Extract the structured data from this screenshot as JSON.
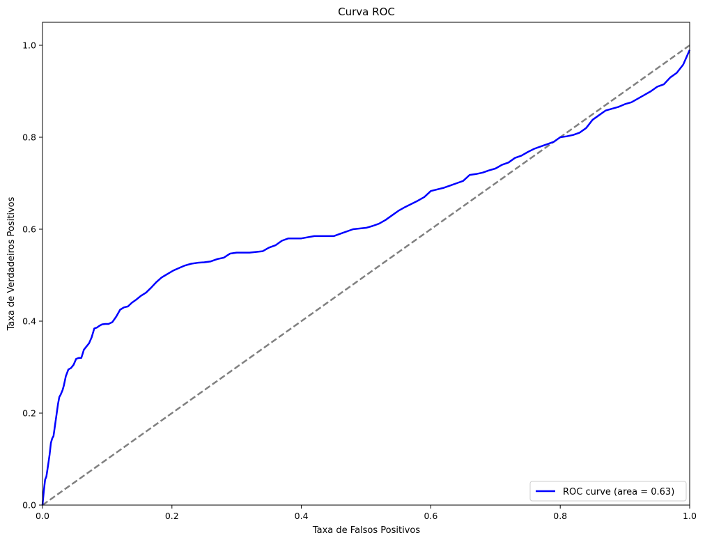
{
  "chart_data": {
    "type": "line",
    "title": "Curva ROC",
    "xlabel": "Taxa de Falsos Positivos",
    "ylabel": "Taxa de Verdadeiros Positivos",
    "xlim": [
      0.0,
      1.0
    ],
    "ylim": [
      0.0,
      1.05
    ],
    "x_ticks": [
      "0.0",
      "0.2",
      "0.4",
      "0.6",
      "0.8",
      "1.0"
    ],
    "y_ticks": [
      "0.0",
      "0.2",
      "0.4",
      "0.6",
      "0.8",
      "1.0"
    ],
    "grid": false,
    "legend_position": "lower-right",
    "series": [
      {
        "name": "ROC curve (area = 0.63)",
        "color": "#0000ff",
        "style": "solid",
        "x": [
          0.0,
          0.002,
          0.004,
          0.006,
          0.009,
          0.011,
          0.013,
          0.015,
          0.017,
          0.02,
          0.022,
          0.024,
          0.026,
          0.028,
          0.031,
          0.033,
          0.036,
          0.04,
          0.044,
          0.048,
          0.052,
          0.056,
          0.06,
          0.064,
          0.068,
          0.072,
          0.076,
          0.08,
          0.084,
          0.088,
          0.092,
          0.097,
          0.102,
          0.108,
          0.114,
          0.12,
          0.126,
          0.132,
          0.138,
          0.145,
          0.152,
          0.16,
          0.168,
          0.176,
          0.184,
          0.19,
          0.196,
          0.202,
          0.21,
          0.22,
          0.23,
          0.24,
          0.25,
          0.26,
          0.27,
          0.28,
          0.29,
          0.3,
          0.32,
          0.34,
          0.35,
          0.36,
          0.37,
          0.38,
          0.4,
          0.42,
          0.44,
          0.45,
          0.46,
          0.48,
          0.5,
          0.51,
          0.52,
          0.53,
          0.54,
          0.55,
          0.56,
          0.57,
          0.58,
          0.59,
          0.6,
          0.62,
          0.63,
          0.64,
          0.65,
          0.66,
          0.67,
          0.68,
          0.69,
          0.7,
          0.71,
          0.72,
          0.73,
          0.74,
          0.75,
          0.76,
          0.77,
          0.78,
          0.79,
          0.8,
          0.81,
          0.82,
          0.83,
          0.84,
          0.85,
          0.86,
          0.87,
          0.88,
          0.89,
          0.9,
          0.91,
          0.92,
          0.93,
          0.94,
          0.95,
          0.96,
          0.97,
          0.98,
          0.99,
          1.0
        ],
        "y": [
          0.0,
          0.03,
          0.055,
          0.062,
          0.09,
          0.11,
          0.135,
          0.145,
          0.15,
          0.18,
          0.2,
          0.22,
          0.235,
          0.24,
          0.25,
          0.26,
          0.28,
          0.295,
          0.298,
          0.305,
          0.318,
          0.32,
          0.32,
          0.338,
          0.345,
          0.352,
          0.365,
          0.384,
          0.386,
          0.39,
          0.393,
          0.394,
          0.394,
          0.398,
          0.41,
          0.425,
          0.43,
          0.432,
          0.44,
          0.447,
          0.455,
          0.462,
          0.473,
          0.485,
          0.495,
          0.5,
          0.505,
          0.51,
          0.515,
          0.521,
          0.525,
          0.527,
          0.528,
          0.53,
          0.535,
          0.538,
          0.547,
          0.549,
          0.549,
          0.552,
          0.56,
          0.565,
          0.575,
          0.58,
          0.58,
          0.585,
          0.585,
          0.585,
          0.59,
          0.6,
          0.603,
          0.607,
          0.612,
          0.62,
          0.63,
          0.64,
          0.648,
          0.655,
          0.662,
          0.67,
          0.683,
          0.69,
          0.695,
          0.7,
          0.705,
          0.718,
          0.72,
          0.723,
          0.728,
          0.732,
          0.74,
          0.745,
          0.755,
          0.76,
          0.768,
          0.775,
          0.78,
          0.785,
          0.79,
          0.8,
          0.802,
          0.805,
          0.81,
          0.82,
          0.838,
          0.848,
          0.858,
          0.862,
          0.866,
          0.872,
          0.876,
          0.884,
          0.892,
          0.9,
          0.91,
          0.915,
          0.93,
          0.94,
          0.958,
          0.99
        ]
      },
      {
        "name": "",
        "color": "#808080",
        "style": "dashed",
        "x": [
          0.0,
          1.0
        ],
        "y": [
          0.0,
          1.0
        ]
      }
    ]
  }
}
